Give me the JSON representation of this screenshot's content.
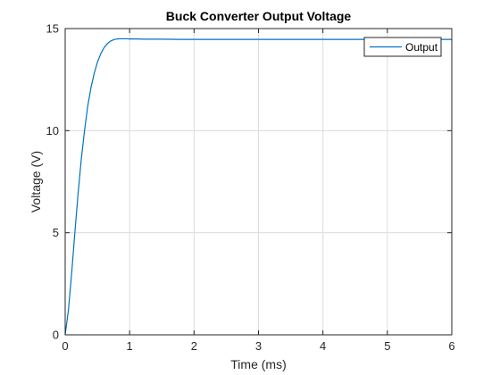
{
  "chart_data": {
    "type": "line",
    "title": "Buck Converter Output Voltage",
    "xlabel": "Time (ms)",
    "ylabel": "Voltage (V)",
    "xlim": [
      0,
      6
    ],
    "ylim": [
      0,
      15
    ],
    "xticks": [
      0,
      1,
      2,
      3,
      4,
      5,
      6
    ],
    "yticks": [
      0,
      5,
      10,
      15
    ],
    "xtick_labels": [
      "0",
      "1",
      "2",
      "3",
      "4",
      "5",
      "6"
    ],
    "ytick_labels": [
      "0",
      "5",
      "10",
      "15"
    ],
    "grid": true,
    "legend_position": "top-right",
    "series": [
      {
        "name": "Output",
        "color": "#0072bd",
        "x": [
          0,
          0.05,
          0.1,
          0.15,
          0.2,
          0.25,
          0.3,
          0.35,
          0.4,
          0.45,
          0.5,
          0.55,
          0.6,
          0.65,
          0.7,
          0.75,
          0.8,
          0.85,
          0.9,
          0.95,
          1.0,
          1.1,
          1.2,
          1.3,
          1.5,
          1.75,
          2.0,
          2.5,
          3.0,
          3.5,
          4.0,
          4.5,
          5.0,
          5.5,
          6.0
        ],
        "y": [
          0,
          1.2,
          3.0,
          5.0,
          6.9,
          8.6,
          10.0,
          11.2,
          12.1,
          12.8,
          13.35,
          13.75,
          14.05,
          14.25,
          14.38,
          14.45,
          14.49,
          14.5,
          14.5,
          14.5,
          14.49,
          14.49,
          14.48,
          14.48,
          14.48,
          14.47,
          14.47,
          14.47,
          14.47,
          14.47,
          14.47,
          14.47,
          14.47,
          14.47,
          14.47
        ]
      }
    ]
  }
}
